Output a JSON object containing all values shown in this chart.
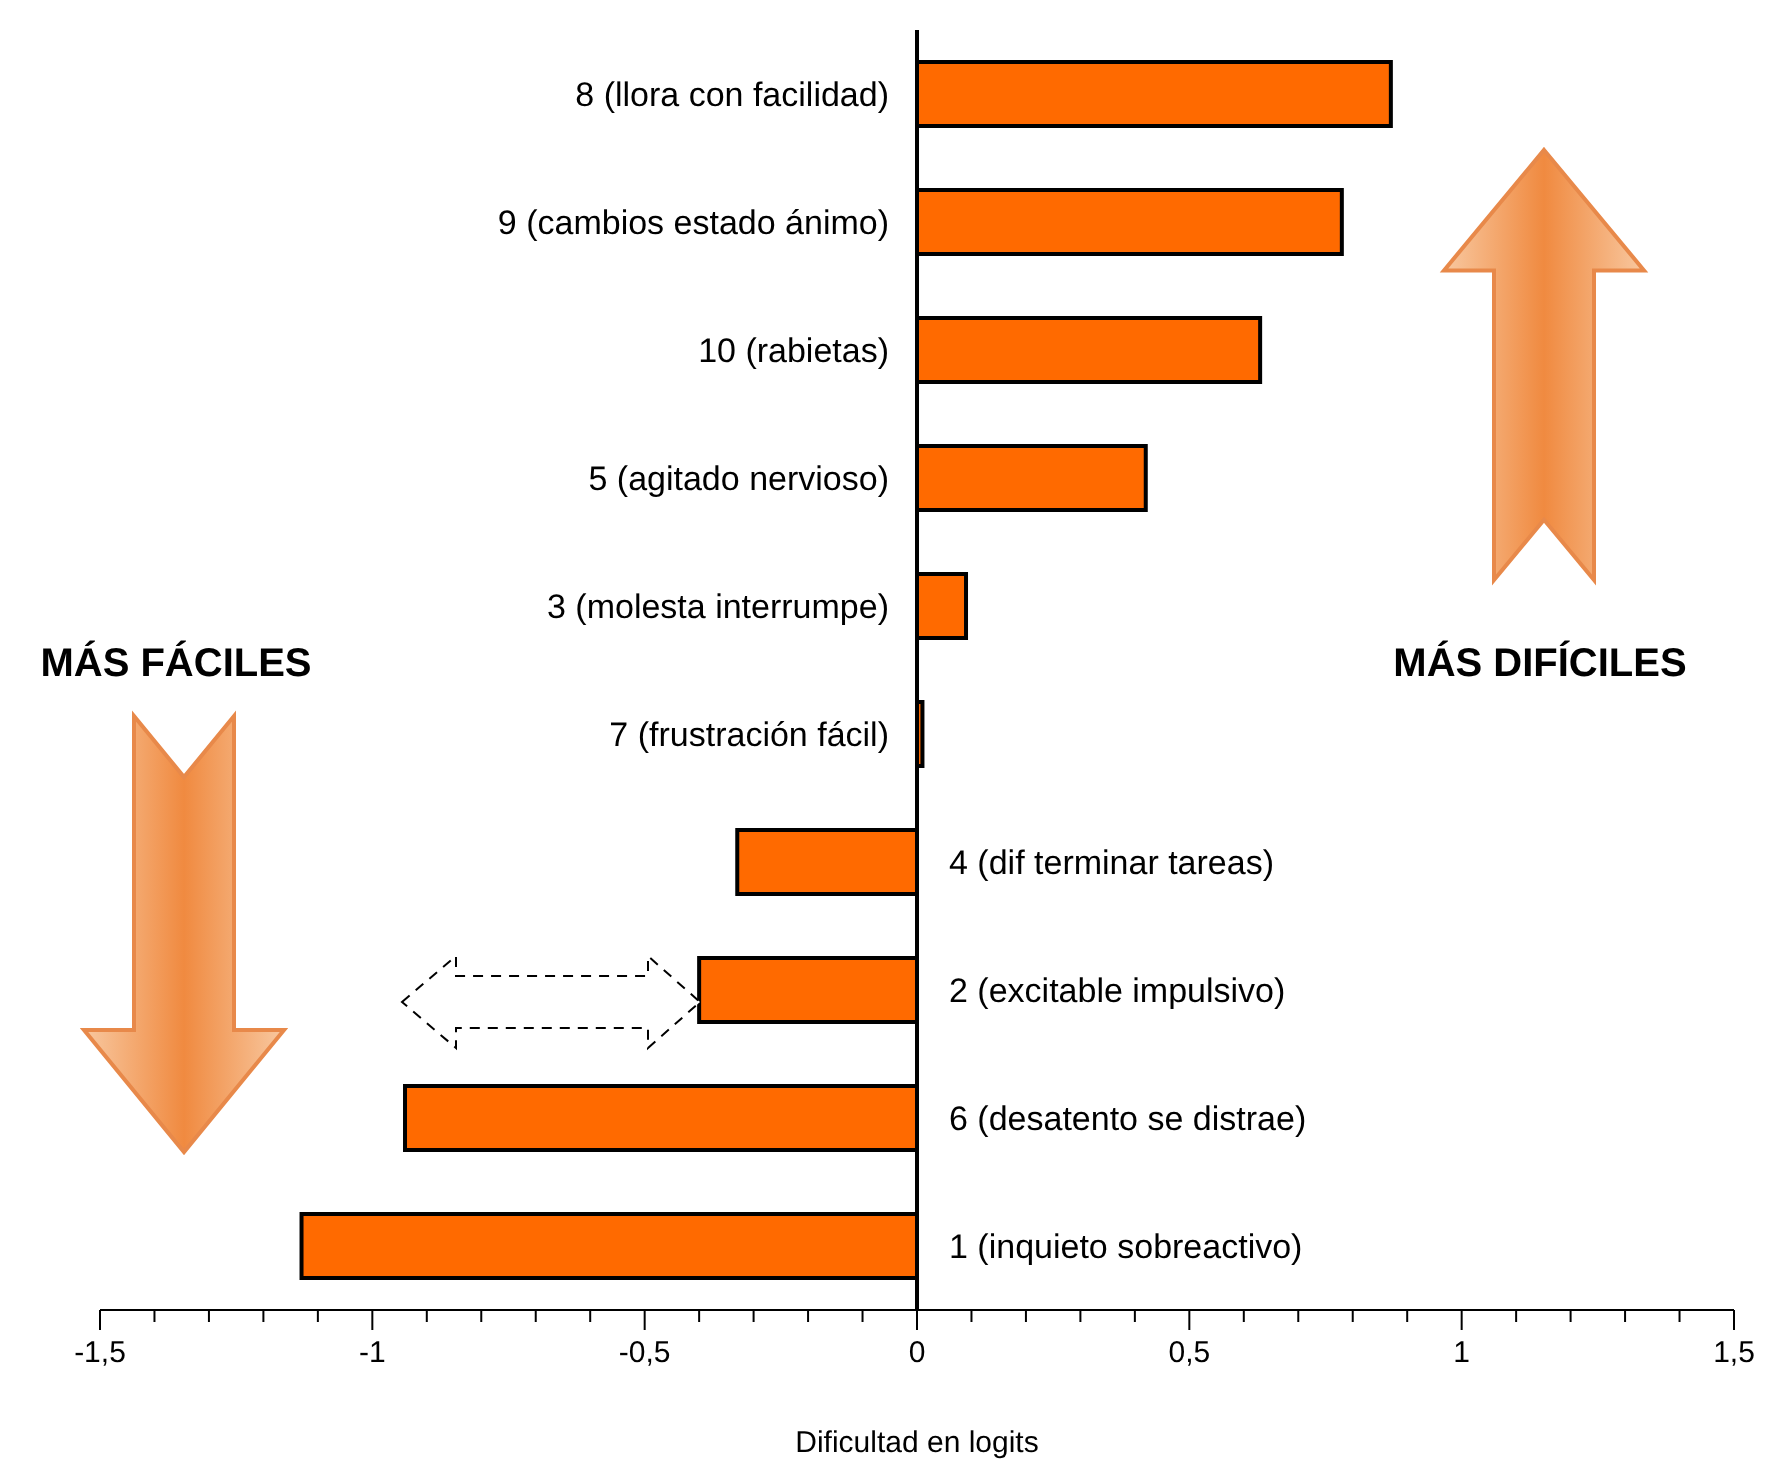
{
  "chart_data": {
    "type": "bar",
    "orientation": "horizontal",
    "xlabel": "Dificultad en logits",
    "categories": [
      "8 (llora con facilidad)",
      "9 (cambios estado ánimo)",
      "10 (rabietas)",
      "5 (agitado nervioso)",
      "3 (molesta interrumpe)",
      "7 (frustración fácil)",
      "4 (dif terminar tareas)",
      "2 (excitable impulsivo)",
      "6 (desatento se distrae)",
      "1 (inquieto sobreactivo)"
    ],
    "values": [
      0.87,
      0.78,
      0.63,
      0.42,
      0.09,
      0.01,
      -0.33,
      -0.4,
      -0.94,
      -1.13
    ],
    "color": "#ff6a00",
    "xlim": [
      -1.5,
      1.5
    ],
    "xticks": [
      {
        "value": -1.5,
        "label": "-1,5"
      },
      {
        "value": -1.4,
        "label": null
      },
      {
        "value": -1.3,
        "label": null
      },
      {
        "value": -1.2,
        "label": null
      },
      {
        "value": -1.1,
        "label": null
      },
      -1,
      {
        "value": -0.9,
        "label": null
      },
      {
        "value": -0.8,
        "label": null
      },
      {
        "value": -0.7,
        "label": null
      },
      {
        "value": -0.6,
        "label": null
      },
      {
        "value": -0.5,
        "label": "-0,5"
      },
      {
        "value": -0.4,
        "label": null
      },
      {
        "value": -0.3,
        "label": null
      },
      {
        "value": -0.2,
        "label": null
      },
      {
        "value": -0.1,
        "label": null
      },
      0,
      {
        "value": 0.1,
        "label": null
      },
      {
        "value": 0.2,
        "label": null
      },
      {
        "value": 0.3,
        "label": null
      },
      {
        "value": 0.4,
        "label": null
      },
      {
        "value": 0.5,
        "label": "0,5"
      },
      {
        "value": 0.6,
        "label": null
      },
      {
        "value": 0.7,
        "label": null
      },
      {
        "value": 0.8,
        "label": null
      },
      {
        "value": 0.9,
        "label": null
      },
      1,
      {
        "value": 1.1,
        "label": null
      },
      {
        "value": 1.2,
        "label": null
      },
      {
        "value": 1.3,
        "label": null
      },
      {
        "value": 1.4,
        "label": null
      },
      {
        "value": 1.5,
        "label": "1,5"
      }
    ],
    "annotations": [
      "MÁS FÁCILES",
      "MÁS DIFÍCILES"
    ],
    "grid": false,
    "legend": false
  }
}
